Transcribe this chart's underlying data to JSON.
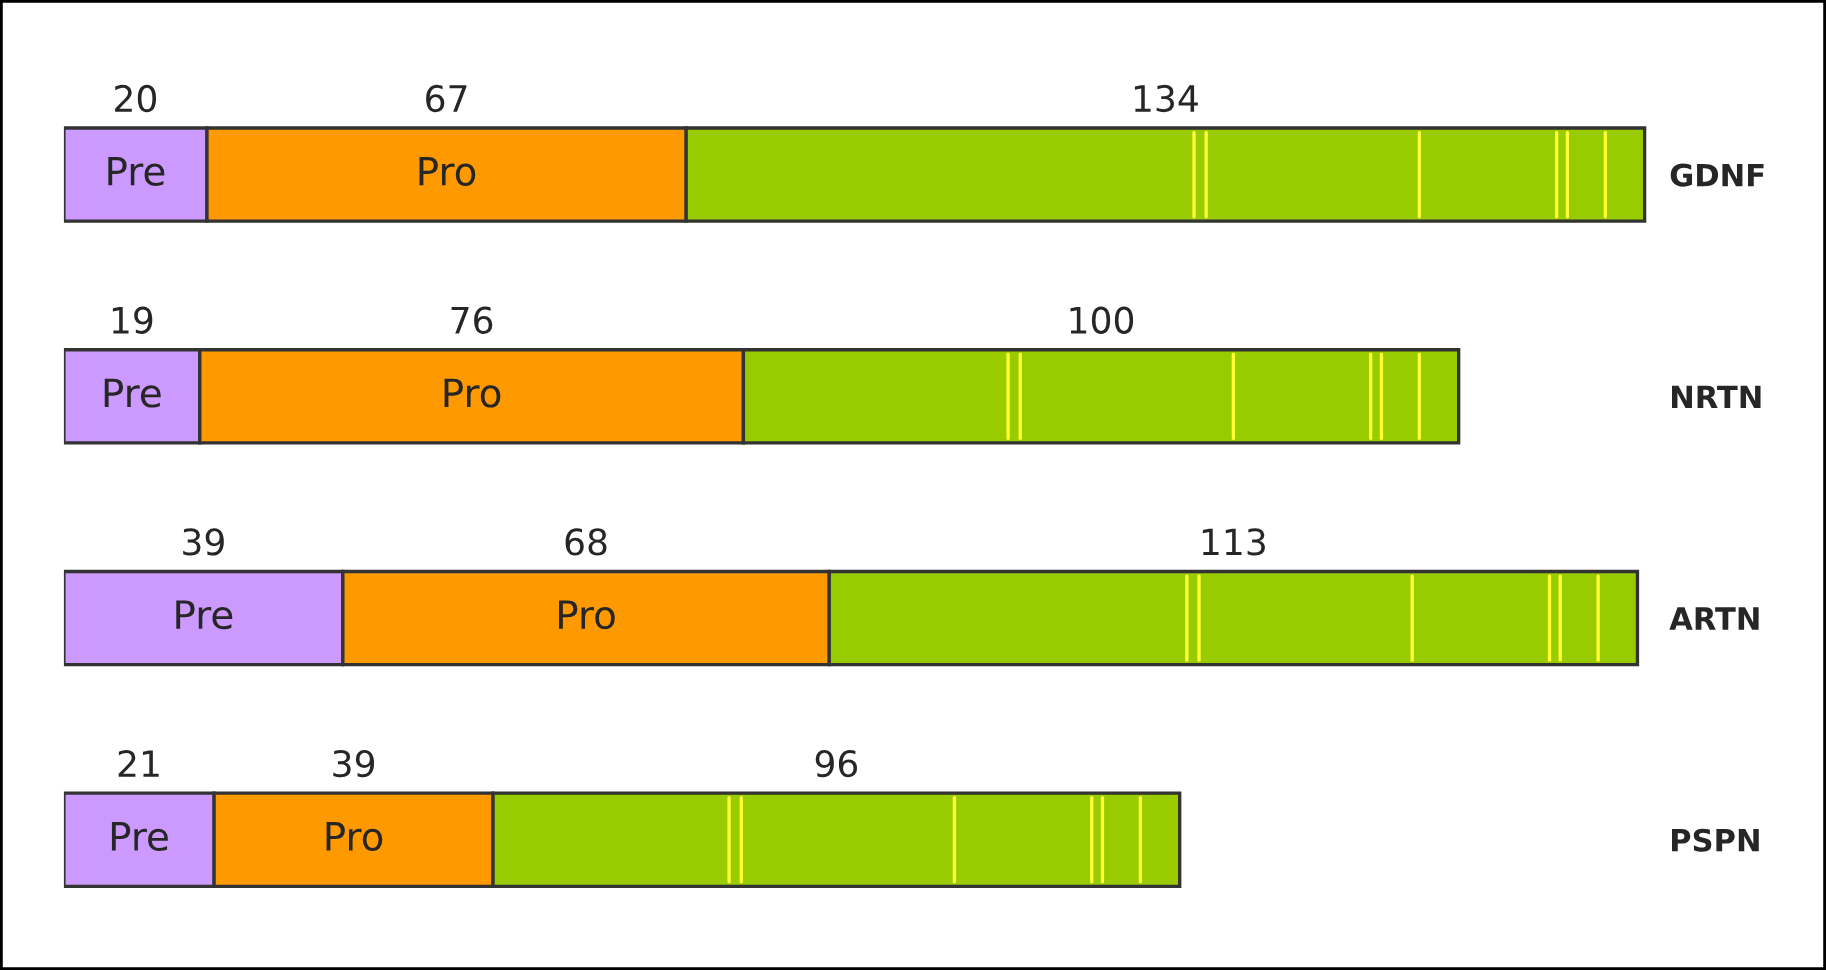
{
  "chart_data": {
    "type": "bar",
    "orientation": "horizontal",
    "stacked": true,
    "data_labels": true,
    "categories": [
      "GDNF",
      "NRTN",
      "ARTN",
      "PSPN"
    ],
    "series": [
      {
        "name": "Pre",
        "color": "#cc99ff",
        "values": [
          20,
          19,
          39,
          21
        ]
      },
      {
        "name": "Pro",
        "color": "#ff9900",
        "values": [
          67,
          76,
          68,
          39
        ]
      },
      {
        "color": "#99cc00",
        "values": [
          134,
          100,
          113,
          96
        ]
      }
    ]
  }
}
